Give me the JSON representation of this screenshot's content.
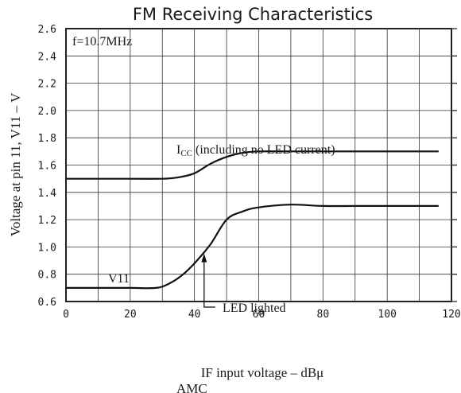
{
  "chart_data": {
    "type": "line",
    "title": "FM Receiving Characteristics",
    "xlabel": "IF input voltage  –  dBμ",
    "ylabel": "Voltage at pin 11, V11  –  V",
    "xlim": [
      0,
      120
    ],
    "ylim": [
      0.6,
      2.6
    ],
    "x_ticks": [
      "0",
      "20",
      "40",
      "60",
      "80",
      "100",
      "120"
    ],
    "y_ticks": [
      "0.6",
      "0.8",
      "1.0",
      "1.2",
      "1.4",
      "1.6",
      "1.8",
      "2.0",
      "2.2",
      "2.4",
      "2.6"
    ],
    "grid": true,
    "condition_label": "f=10.7MHz",
    "series": [
      {
        "name": "ICC (including no LED current)",
        "x": [
          0,
          10,
          20,
          30,
          35,
          40,
          45,
          50,
          55,
          60,
          70,
          80,
          90,
          100,
          110,
          116
        ],
        "y": [
          1.5,
          1.5,
          1.5,
          1.5,
          1.51,
          1.54,
          1.61,
          1.66,
          1.69,
          1.7,
          1.7,
          1.7,
          1.7,
          1.7,
          1.7,
          1.7
        ]
      },
      {
        "name": "V11",
        "x": [
          0,
          10,
          20,
          28,
          32,
          36,
          40,
          45,
          50,
          55,
          60,
          70,
          80,
          90,
          100,
          110,
          116
        ],
        "y": [
          0.7,
          0.7,
          0.7,
          0.7,
          0.73,
          0.79,
          0.88,
          1.02,
          1.2,
          1.26,
          1.29,
          1.31,
          1.3,
          1.3,
          1.3,
          1.3,
          1.3
        ]
      }
    ],
    "annotations": {
      "icc_label_main": "I",
      "icc_label_sub": "CC",
      "icc_label_rest": " (including no LED current)",
      "v11_label": "V11",
      "led_label": "LED lighted",
      "led_x": 43
    },
    "footer_text": "AMC"
  }
}
